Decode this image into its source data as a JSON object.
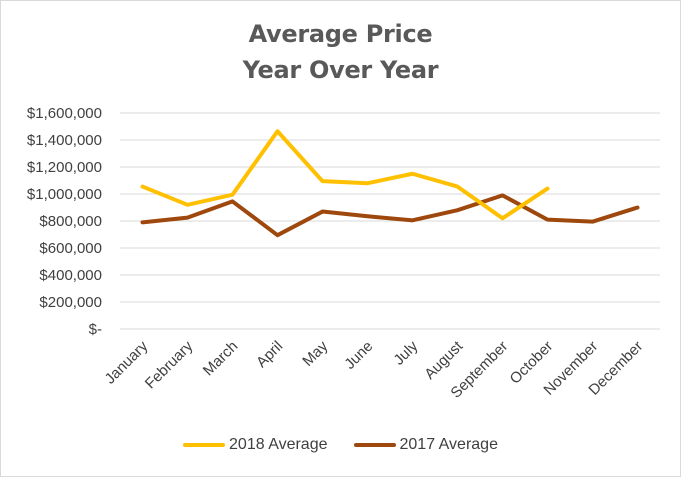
{
  "chart_data": {
    "type": "line",
    "title": [
      "Average Price",
      "Year Over Year"
    ],
    "categories": [
      "January",
      "February",
      "March",
      "April",
      "May",
      "June",
      "July",
      "August",
      "September",
      "October",
      "November",
      "December"
    ],
    "series": [
      {
        "name": "2018 Average",
        "color": "#FFC000",
        "values": [
          1055000,
          920000,
          995000,
          1465000,
          1095000,
          1080000,
          1150000,
          1055000,
          820000,
          1040000,
          null,
          null
        ]
      },
      {
        "name": "2017 Average",
        "color": "#9E480E",
        "values": [
          790000,
          825000,
          945000,
          695000,
          870000,
          835000,
          805000,
          880000,
          990000,
          810000,
          795000,
          900000
        ]
      }
    ],
    "ylim": [
      0,
      1600000
    ],
    "yticks": [
      0,
      200000,
      400000,
      600000,
      800000,
      1000000,
      1200000,
      1400000,
      1600000
    ],
    "ytick_labels": [
      "$-",
      "$200,000",
      "$400,000",
      "$600,000",
      "$800,000",
      "$1,000,000",
      "$1,200,000",
      "$1,400,000",
      "$1,600,000"
    ],
    "grid": true,
    "legend_position": "bottom"
  }
}
